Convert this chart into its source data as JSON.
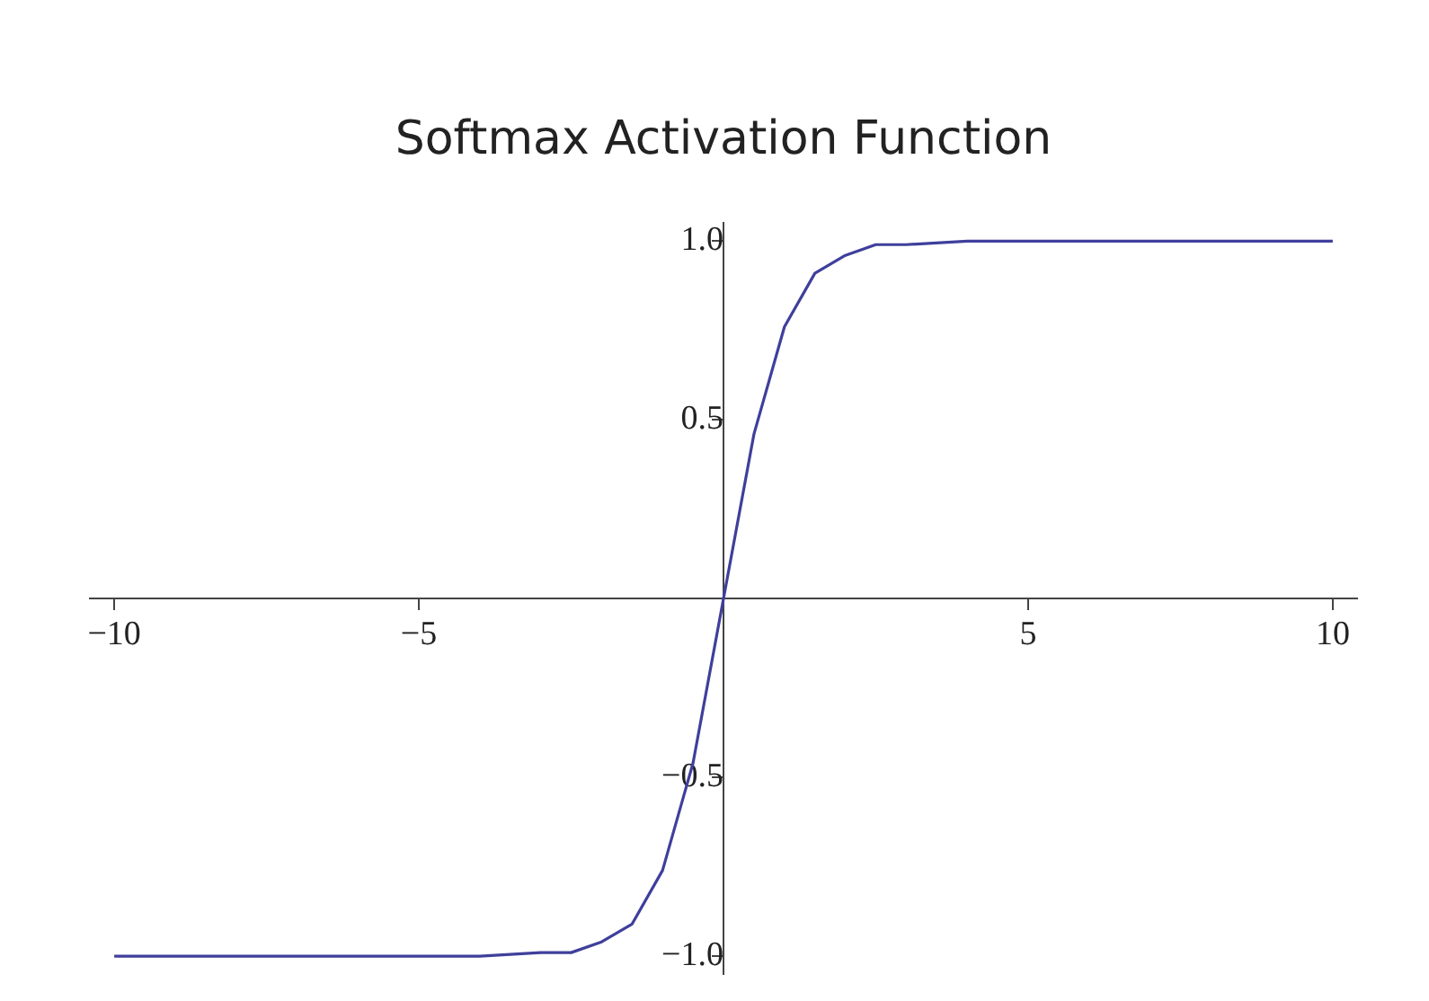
{
  "chart_data": {
    "type": "line",
    "title": "Softmax Activation Function",
    "x": [
      -10,
      -6,
      -5,
      -4,
      -3,
      -2.5,
      -2,
      -1.5,
      -1,
      -0.5,
      0,
      0.5,
      1,
      1.5,
      2,
      2.5,
      3,
      4,
      5,
      6,
      10
    ],
    "series": [
      {
        "color": "#3f3f9c",
        "values": [
          -1,
          -1,
          -1,
          -1,
          -0.99,
          -0.99,
          -0.96,
          -0.91,
          -0.76,
          -0.46,
          0,
          0.46,
          0.76,
          0.91,
          0.96,
          0.99,
          0.99,
          1,
          1,
          1,
          1
        ]
      }
    ],
    "xlim": [
      -10.4,
      10.4
    ],
    "ylim": [
      -1.05,
      1.05
    ],
    "xticks": [
      {
        "value": -10,
        "label": "−10"
      },
      {
        "value": -5,
        "label": "−5"
      },
      {
        "value": 5,
        "label": "5"
      },
      {
        "value": 10,
        "label": "10"
      }
    ],
    "yticks": [
      {
        "value": -1,
        "label": "−1.0"
      },
      {
        "value": -0.5,
        "label": "−0.5"
      },
      {
        "value": 0.5,
        "label": "0.5"
      },
      {
        "value": 1,
        "label": "1.0"
      }
    ],
    "grid": false,
    "legend": false,
    "marker": "none",
    "line_style": "solid"
  }
}
